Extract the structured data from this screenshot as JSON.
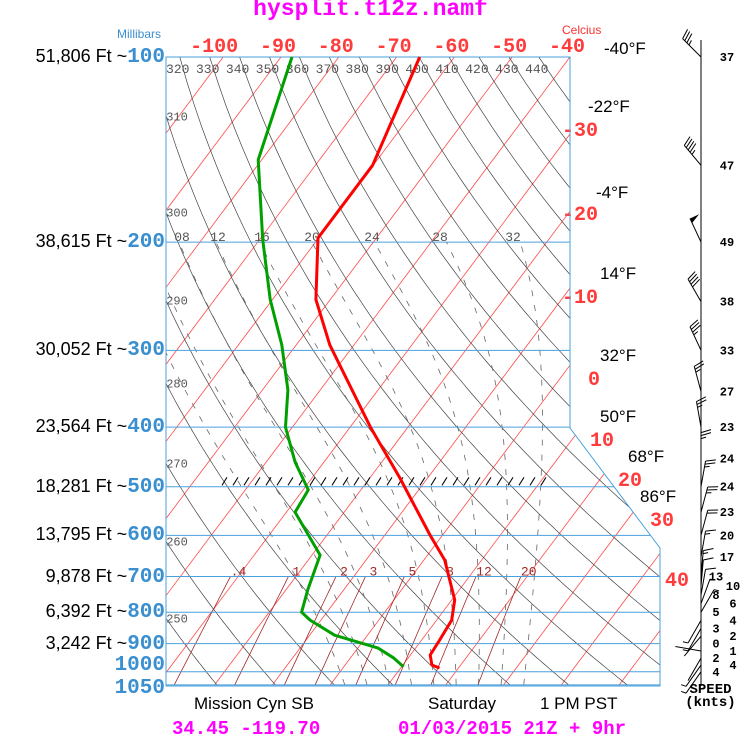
{
  "header": {
    "title": "hysplit.t12z.namf",
    "millibars_label": "Millibars",
    "celsius_label": "Celcius"
  },
  "pressure_axis": [
    {
      "mb": "100",
      "ft": "51,806 Ft ~"
    },
    {
      "mb": "200",
      "ft": "38,615 Ft ~"
    },
    {
      "mb": "300",
      "ft": "30,052 Ft ~"
    },
    {
      "mb": "400",
      "ft": "23,564 Ft ~"
    },
    {
      "mb": "500",
      "ft": "18,281 Ft ~"
    },
    {
      "mb": "600",
      "ft": "13,795 Ft ~"
    },
    {
      "mb": "700",
      "ft": "9,878 Ft ~"
    },
    {
      "mb": "800",
      "ft": "6,392 Ft ~"
    },
    {
      "mb": "900",
      "ft": "3,242 Ft ~"
    },
    {
      "mb": "1000",
      "ft": ""
    },
    {
      "mb": "1050",
      "ft": ""
    }
  ],
  "top_temp_labels": [
    "-100",
    "-90",
    "-80",
    "-70",
    "-60",
    "-50",
    "-40"
  ],
  "side_temp_labels": [
    {
      "c": "-30",
      "f": "-22°F"
    },
    {
      "c": "-20",
      "f": "-4°F"
    },
    {
      "c": "-10",
      "f": "14°F"
    },
    {
      "c": "0",
      "f": "32°F"
    },
    {
      "c": "10",
      "f": "50°F"
    },
    {
      "c": "20",
      "f": "68°F"
    },
    {
      "c": "30",
      "f": "86°F"
    },
    {
      "c": "40",
      "f": ""
    }
  ],
  "top_f_label": "-40°F",
  "footer": {
    "station": "Mission Cyn SB",
    "day": "Saturday",
    "local_time": "1 PM PST",
    "latlon": "34.45 -119.70",
    "run": "01/03/2015 21Z + 9hr",
    "speed_label": "SPEED",
    "speed_unit": "(knts)"
  },
  "colors": {
    "temperature": "#ff0000",
    "dewpoint": "#00a000",
    "isotherm": "#ff4a4a",
    "isobar": "#4aa0dc",
    "dry_adiabat": "#444444",
    "moist_adiabat": "#666666",
    "mixing_ratio": "#a02828",
    "title": "#ff00ff"
  },
  "chart_data": {
    "type": "line",
    "diagram": "skew-T log-P",
    "y_scale": "log pressure (mb)",
    "ylim": [
      1050,
      100
    ],
    "isobars": [
      100,
      200,
      300,
      400,
      500,
      600,
      700,
      800,
      900,
      1000,
      1050
    ],
    "dry_adiabat_labels": [
      "250",
      "260",
      "270",
      "280",
      "290",
      "300",
      "310",
      "320",
      "330",
      "340",
      "350",
      "360",
      "370",
      "380",
      "390",
      "400",
      "410",
      "420",
      "430",
      "440"
    ],
    "moist_adiabat_labels": [
      "08",
      "12",
      "16",
      "20",
      "24",
      "28",
      "32"
    ],
    "mixing_ratio_labels": [
      ".4",
      "1",
      "2",
      "3",
      "5",
      "8",
      "12",
      "20"
    ],
    "temperature": {
      "pressure": [
        100,
        150,
        197,
        248,
        294,
        400,
        484,
        599,
        658,
        764,
        824,
        888,
        939,
        975,
        986
      ],
      "celsius": [
        -66.0,
        -60.1,
        -60.1,
        -52.5,
        -44.2,
        -26.5,
        -14.8,
        -2.2,
        3.6,
        10.5,
        12.6,
        13.1,
        13.4,
        15.0,
        16.7
      ]
    },
    "dewpoint": {
      "pressure": [
        100,
        147,
        198,
        248,
        294,
        348,
        400,
        456,
        506,
        550,
        646,
        737,
        800,
        824,
        872,
        915,
        949,
        981
      ],
      "celsius": [
        -88.1,
        -80.6,
        -69.5,
        -60.4,
        -52.5,
        -45.6,
        -41.2,
        -35.0,
        -29.1,
        -28.5,
        -18.6,
        -16.2,
        -14.4,
        -11.9,
        -5.7,
        3.5,
        7.4,
        10.3
      ]
    },
    "winds": [
      {
        "p": 100,
        "speed": 37,
        "dir": 315
      },
      {
        "p": 150,
        "speed": 47,
        "dir": 320
      },
      {
        "p": 200,
        "speed": 49,
        "dir": 335
      },
      {
        "p": 250,
        "speed": 38,
        "dir": 330
      },
      {
        "p": 300,
        "speed": 33,
        "dir": 335
      },
      {
        "p": 350,
        "speed": 27,
        "dir": 345
      },
      {
        "p": 400,
        "speed": 23,
        "dir": 350
      },
      {
        "p": 450,
        "speed": 24,
        "dir": 0
      },
      {
        "p": 500,
        "speed": 24,
        "dir": 10
      },
      {
        "p": 550,
        "speed": 23,
        "dir": 15
      },
      {
        "p": 600,
        "speed": 20,
        "dir": 15
      },
      {
        "p": 650,
        "speed": 17,
        "dir": 10
      },
      {
        "p": 700,
        "speed": 13,
        "dir": 5
      },
      {
        "p": 725,
        "speed": 10,
        "dir": 5
      },
      {
        "p": 750,
        "speed": 8,
        "dir": 10
      },
      {
        "p": 775,
        "speed": 6,
        "dir": 20
      },
      {
        "p": 800,
        "speed": 5,
        "dir": 30
      },
      {
        "p": 825,
        "speed": 4,
        "dir": 210
      },
      {
        "p": 850,
        "speed": 3,
        "dir": 210
      },
      {
        "p": 875,
        "speed": 2,
        "dir": 220
      },
      {
        "p": 900,
        "speed": 0,
        "dir": 0
      },
      {
        "p": 925,
        "speed": 1,
        "dir": 280
      },
      {
        "p": 950,
        "speed": 2,
        "dir": 210
      },
      {
        "p": 975,
        "speed": 4,
        "dir": 215
      },
      {
        "p": 1000,
        "speed": 4,
        "dir": 215
      }
    ]
  }
}
